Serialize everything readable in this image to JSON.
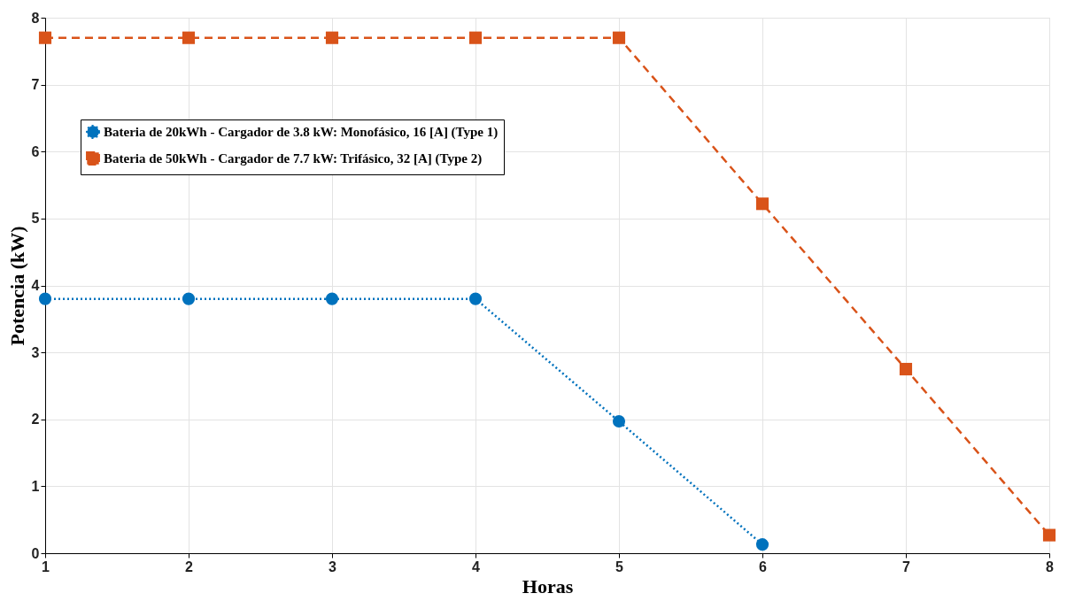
{
  "chart_data": {
    "type": "line",
    "xlabel": "Horas",
    "ylabel": "Potencia (kW)",
    "x": [
      1,
      2,
      3,
      4,
      5,
      6,
      7,
      8
    ],
    "series": [
      {
        "name": "Bateria de 20kWh - Cargador de 3.8 kW: Monofásico, 16 [A] (Type 1)",
        "color": "#0072bd",
        "values": [
          3.8,
          3.8,
          3.8,
          3.8,
          1.97,
          0.13,
          null,
          null
        ],
        "marker": "circle",
        "line_style": "dotted"
      },
      {
        "name": "Bateria de 50kWh - Cargador de 7.7 kW: Trifásico, 32 [A] (Type 2)",
        "color": "#d95319",
        "values": [
          7.7,
          7.7,
          7.7,
          7.7,
          7.7,
          5.22,
          2.75,
          0.27
        ],
        "marker": "square",
        "line_style": "dashed"
      }
    ],
    "xlim": [
      1,
      8
    ],
    "xticks": [
      1,
      2,
      3,
      4,
      5,
      6,
      7,
      8
    ],
    "ylim": [
      0,
      8
    ],
    "yticks": [
      0,
      1,
      2,
      3,
      4,
      5,
      6,
      7,
      8
    ],
    "grid": true,
    "legend": "top left"
  }
}
